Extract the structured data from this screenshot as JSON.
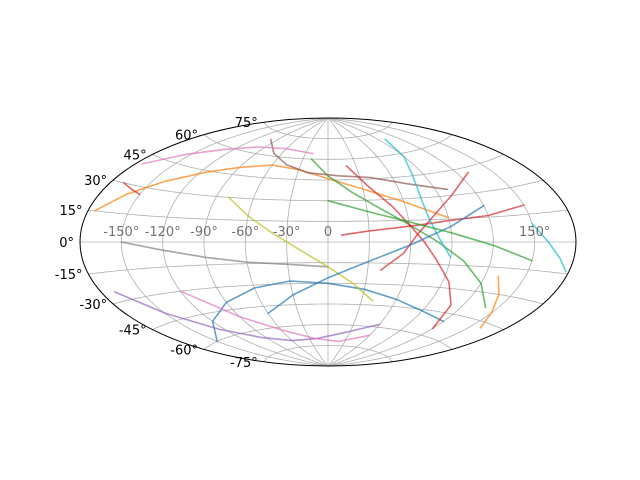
{
  "chart_data": {
    "type": "line",
    "projection": "aitoff",
    "title": "",
    "xlabel": "",
    "ylabel": "",
    "grid": true,
    "legend": "none",
    "xlim": [
      -180,
      180
    ],
    "ylim": [
      -90,
      90
    ],
    "lon_ticks": [
      {
        "value": -150,
        "label": "-150°"
      },
      {
        "value": -120,
        "label": "-120°"
      },
      {
        "value": -90,
        "label": "-90°"
      },
      {
        "value": -60,
        "label": "-60°"
      },
      {
        "value": -30,
        "label": "-30°"
      },
      {
        "value": 0,
        "label": "0"
      },
      {
        "value": 150,
        "label": "150°"
      }
    ],
    "lat_ticks": [
      {
        "value": 75,
        "label": "75°"
      },
      {
        "value": 60,
        "label": "60°"
      },
      {
        "value": 45,
        "label": "45°"
      },
      {
        "value": 30,
        "label": "30°"
      },
      {
        "value": 15,
        "label": "15°"
      },
      {
        "value": 0,
        "label": "0°"
      },
      {
        "value": -15,
        "label": "-15°"
      },
      {
        "value": -30,
        "label": "-30°"
      },
      {
        "value": -45,
        "label": "-45°"
      },
      {
        "value": -60,
        "label": "-60°"
      },
      {
        "value": -75,
        "label": "-75°"
      }
    ],
    "series": [
      {
        "color": "#1f77b4",
        "points": [
          [
            -150,
            -60
          ],
          [
            -120,
            -50
          ],
          [
            -90,
            -40
          ],
          [
            -60,
            -32
          ],
          [
            -30,
            -28
          ],
          [
            0,
            -30
          ],
          [
            30,
            -34
          ],
          [
            60,
            -40
          ],
          [
            90,
            -46
          ],
          [
            120,
            -50
          ]
        ]
      },
      {
        "color": "#ff7f0e",
        "points": [
          [
            -175,
            15
          ],
          [
            -160,
            25
          ],
          [
            -140,
            35
          ],
          [
            -115,
            44
          ],
          [
            -90,
            50
          ],
          [
            -60,
            54
          ],
          [
            -30,
            52
          ],
          [
            0,
            46
          ],
          [
            30,
            38
          ],
          [
            60,
            28
          ],
          [
            90,
            16
          ]
        ]
      },
      {
        "color": "#2ca02c",
        "points": [
          [
            -20,
            60
          ],
          [
            0,
            48
          ],
          [
            20,
            36
          ],
          [
            40,
            24
          ],
          [
            60,
            12
          ],
          [
            80,
            0
          ],
          [
            100,
            -12
          ],
          [
            120,
            -25
          ],
          [
            140,
            -38
          ]
        ]
      },
      {
        "color": "#d62728",
        "points": [
          [
            20,
            55
          ],
          [
            35,
            40
          ],
          [
            50,
            25
          ],
          [
            60,
            12
          ],
          [
            70,
            0
          ],
          [
            80,
            -12
          ],
          [
            95,
            -26
          ],
          [
            110,
            -40
          ],
          [
            120,
            -55
          ]
        ]
      },
      {
        "color": "#d62728",
        "points": [
          [
            10,
            5
          ],
          [
            30,
            8
          ],
          [
            50,
            10
          ],
          [
            70,
            12
          ],
          [
            90,
            14
          ],
          [
            120,
            16
          ],
          [
            150,
            20
          ]
        ]
      },
      {
        "color": "#d62728",
        "points": [
          [
            40,
            -20
          ],
          [
            55,
            -8
          ],
          [
            65,
            5
          ],
          [
            80,
            18
          ],
          [
            100,
            30
          ],
          [
            130,
            42
          ]
        ]
      },
      {
        "color": "#9467bd",
        "points": [
          [
            -170,
            -25
          ],
          [
            -150,
            -40
          ],
          [
            -125,
            -55
          ],
          [
            -95,
            -65
          ],
          [
            -60,
            -70
          ],
          [
            -20,
            -70
          ],
          [
            20,
            -66
          ],
          [
            60,
            -58
          ]
        ]
      },
      {
        "color": "#8c564b",
        "points": [
          [
            -100,
            70
          ],
          [
            -70,
            62
          ],
          [
            -45,
            55
          ],
          [
            -20,
            50
          ],
          [
            10,
            48
          ],
          [
            40,
            46
          ],
          [
            70,
            40
          ],
          [
            100,
            34
          ]
        ]
      },
      {
        "color": "#e377c2",
        "points": [
          [
            -175,
            40
          ],
          [
            -155,
            50
          ],
          [
            -130,
            58
          ],
          [
            -100,
            64
          ],
          [
            -60,
            66
          ],
          [
            -20,
            64
          ]
        ]
      },
      {
        "color": "#e377c2",
        "points": [
          [
            -120,
            -30
          ],
          [
            -90,
            -50
          ],
          [
            -60,
            -62
          ],
          [
            -20,
            -70
          ],
          [
            20,
            -72
          ],
          [
            60,
            -66
          ]
        ]
      },
      {
        "color": "#7f7f7f",
        "points": [
          [
            -150,
            0
          ],
          [
            -120,
            -5
          ],
          [
            -90,
            -10
          ],
          [
            -60,
            -14
          ],
          [
            -30,
            -16
          ],
          [
            0,
            -18
          ]
        ]
      },
      {
        "color": "#bcbd22",
        "points": [
          [
            -80,
            30
          ],
          [
            -60,
            18
          ],
          [
            -40,
            6
          ],
          [
            -20,
            -6
          ],
          [
            0,
            -18
          ],
          [
            20,
            -30
          ],
          [
            40,
            -42
          ]
        ]
      },
      {
        "color": "#17becf",
        "points": [
          [
            100,
            70
          ],
          [
            90,
            58
          ],
          [
            80,
            46
          ],
          [
            75,
            32
          ],
          [
            75,
            18
          ],
          [
            80,
            4
          ],
          [
            90,
            -10
          ]
        ]
      },
      {
        "color": "#17becf",
        "points": [
          [
            150,
            10
          ],
          [
            160,
            0
          ],
          [
            170,
            -8
          ],
          [
            178,
            -14
          ]
        ]
      },
      {
        "color": "#1f77b4",
        "points": [
          [
            -60,
            -50
          ],
          [
            -30,
            -38
          ],
          [
            0,
            -26
          ],
          [
            30,
            -14
          ],
          [
            60,
            -2
          ],
          [
            90,
            10
          ],
          [
            120,
            22
          ]
        ]
      },
      {
        "color": "#ff7f0e",
        "points": [
          [
            130,
            -20
          ],
          [
            140,
            -30
          ],
          [
            150,
            -40
          ],
          [
            160,
            -48
          ]
        ]
      },
      {
        "color": "#2ca02c",
        "points": [
          [
            0,
            30
          ],
          [
            30,
            22
          ],
          [
            60,
            14
          ],
          [
            90,
            6
          ],
          [
            120,
            -2
          ],
          [
            150,
            -10
          ]
        ]
      },
      {
        "color": "#d62728",
        "points": [
          [
            -170,
            30
          ],
          [
            -160,
            28
          ],
          [
            -150,
            26
          ]
        ]
      }
    ]
  }
}
